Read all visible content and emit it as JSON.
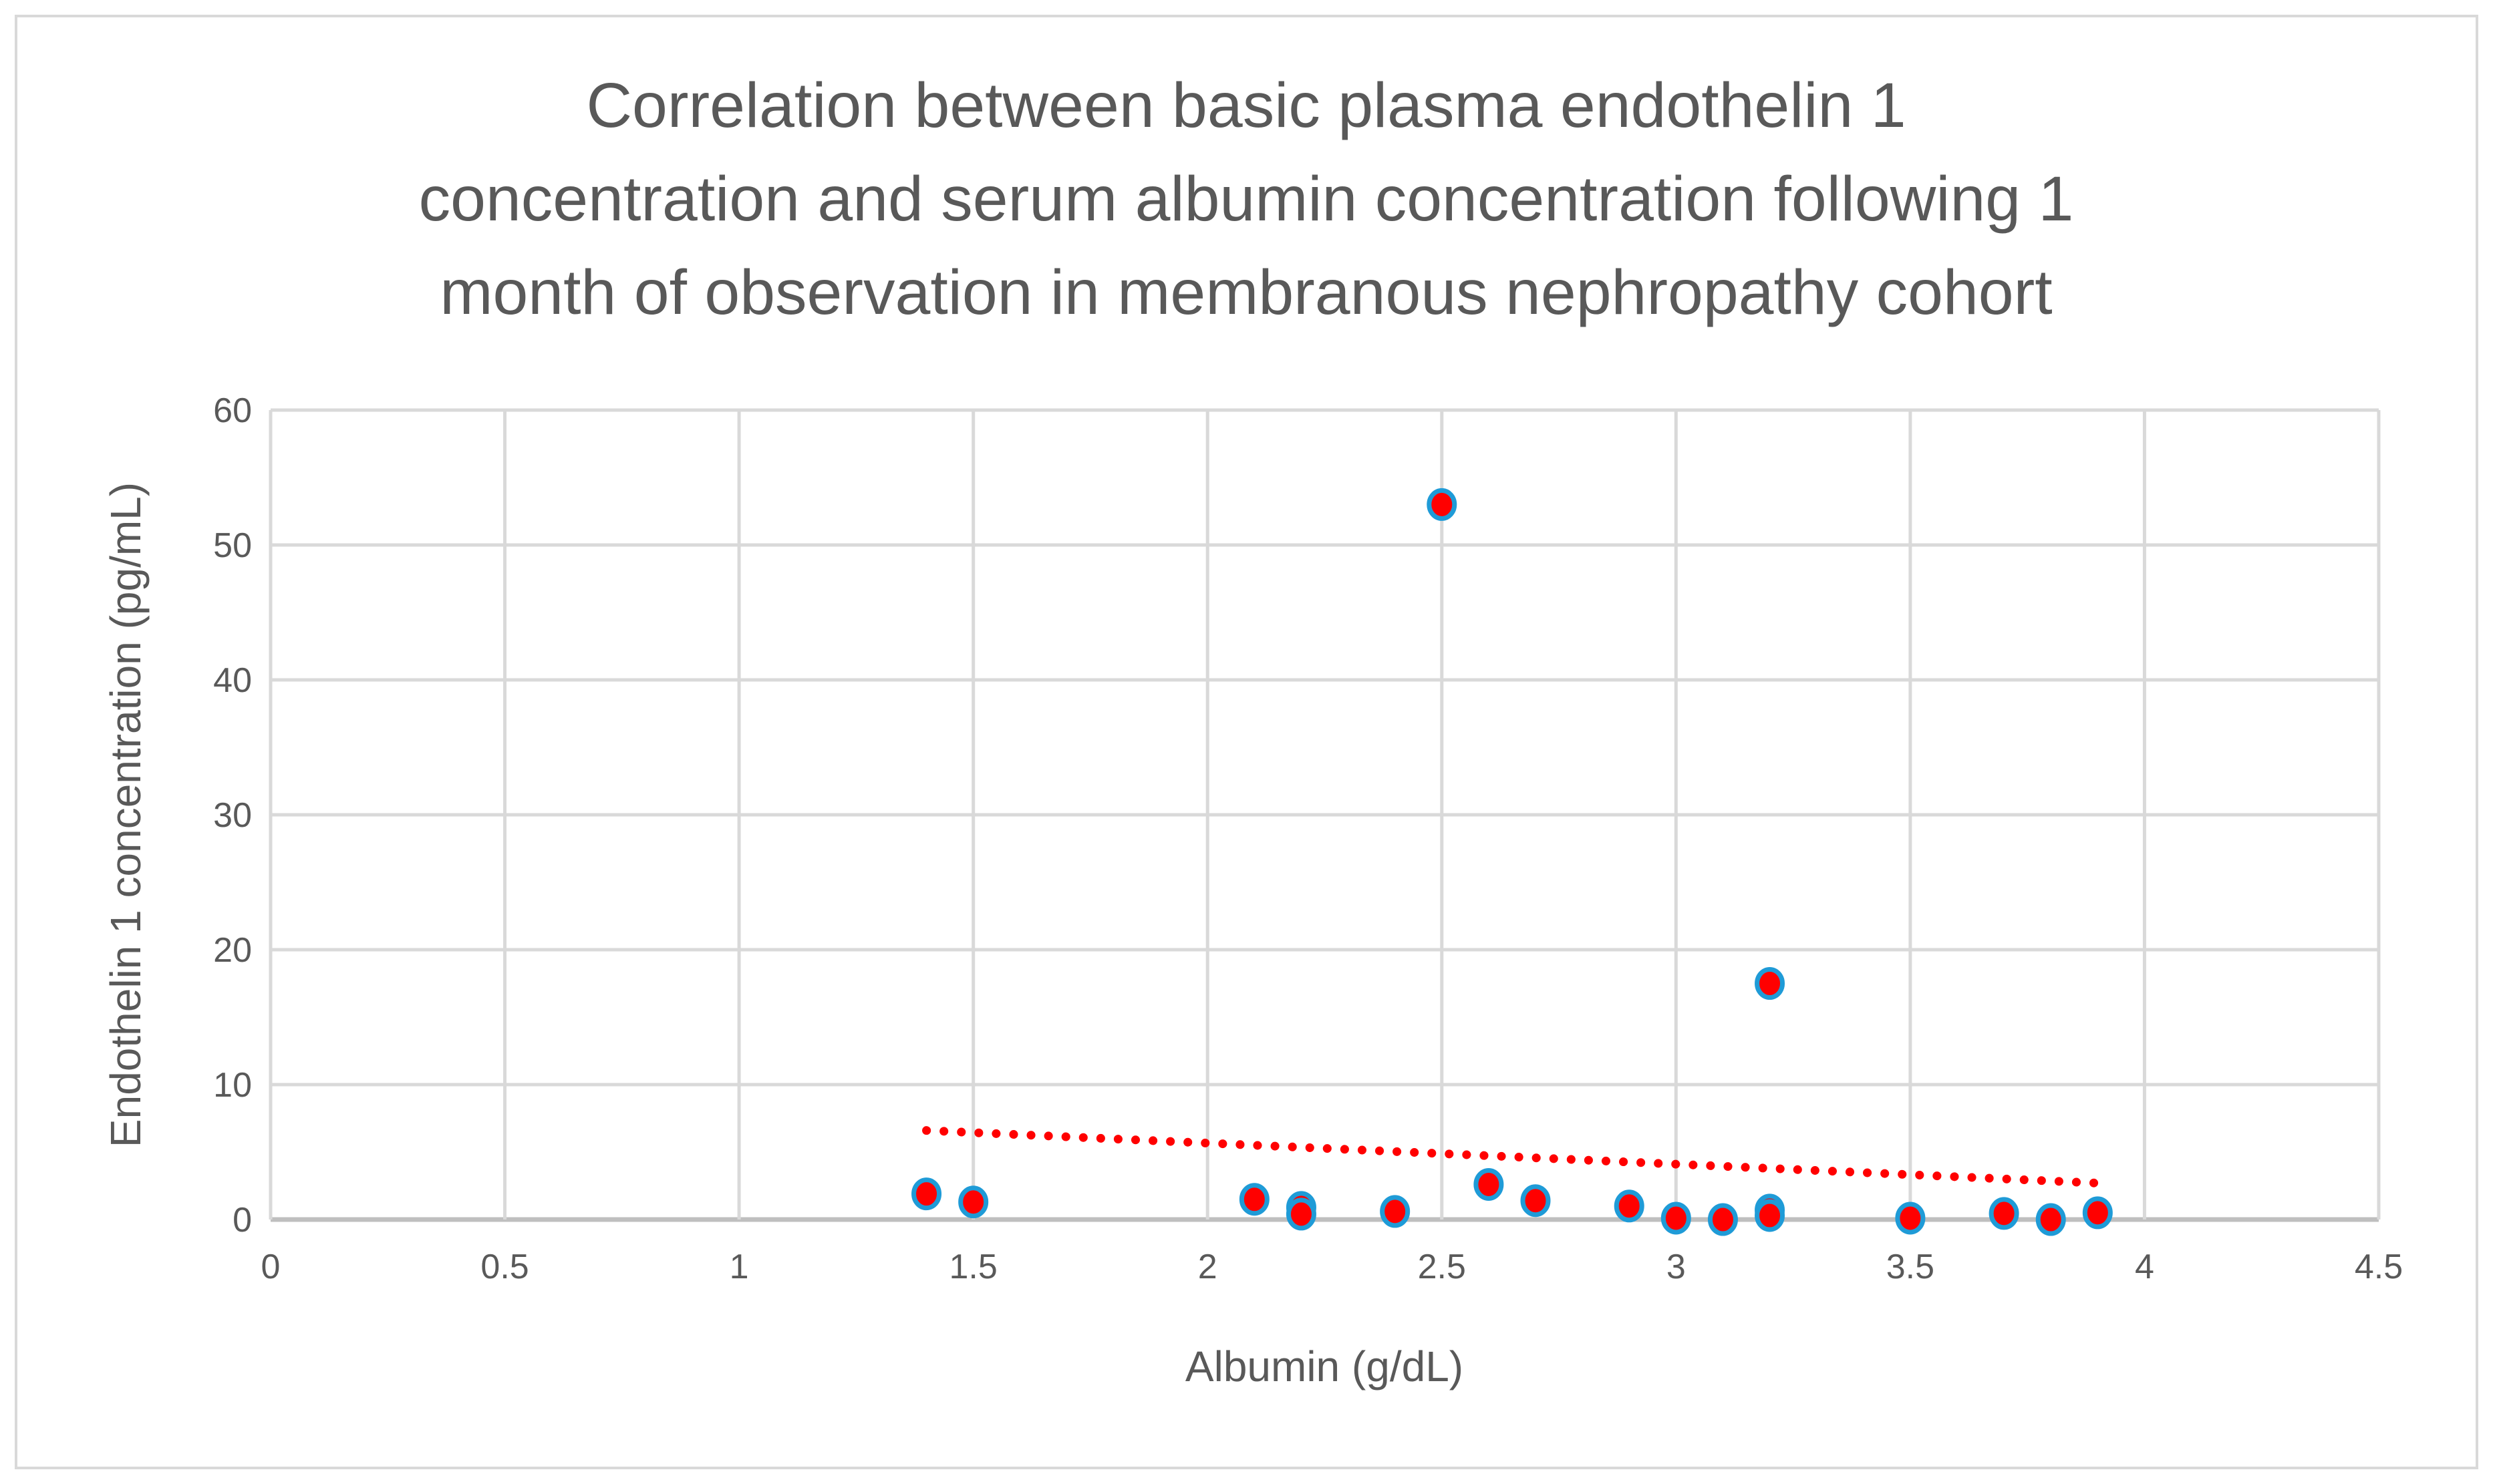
{
  "chart_data": {
    "type": "scatter",
    "title": [
      "Correlation between basic plasma endothelin 1",
      "concentration and serum albumin concentration following 1",
      "month of observation in membranous nephropathy cohort"
    ],
    "xlabel": "Albumin (g/dL)",
    "ylabel": "Endothelin 1  concentration (pg/mL)",
    "xlim": [
      0,
      4.5
    ],
    "ylim": [
      0,
      60
    ],
    "xticks": [
      "0",
      "0.5",
      "1",
      "1.5",
      "2",
      "2.5",
      "3",
      "3.5",
      "4",
      "4.5"
    ],
    "xtick_values": [
      0,
      0.5,
      1,
      1.5,
      2,
      2.5,
      3,
      3.5,
      4,
      4.5
    ],
    "yticks": [
      "0",
      "10",
      "20",
      "30",
      "40",
      "50",
      "60"
    ],
    "ytick_values": [
      0,
      10,
      20,
      30,
      40,
      50,
      60
    ],
    "grid": true,
    "legend": "none",
    "series": [
      {
        "name": "Endothelin 1",
        "marker_fill": "#FF0000",
        "marker_edge": "#1F9BD7",
        "x": [
          1.4,
          1.5,
          2.1,
          2.2,
          2.2,
          2.4,
          2.5,
          2.6,
          2.7,
          2.9,
          3.0,
          3.1,
          3.2,
          3.2,
          3.2,
          3.5,
          3.7,
          3.8,
          3.9
        ],
        "y": [
          1.9,
          1.3,
          1.5,
          0.9,
          0.4,
          0.6,
          53.0,
          2.6,
          1.4,
          1.0,
          0.1,
          0.0,
          0.7,
          0.3,
          17.5,
          0.1,
          0.45,
          0.0,
          0.5
        ]
      }
    ],
    "trendline": {
      "type": "linear",
      "color": "#FF0000",
      "style": "dotted",
      "x": [
        1.4,
        3.9
      ],
      "y": [
        6.6,
        2.7
      ]
    }
  }
}
